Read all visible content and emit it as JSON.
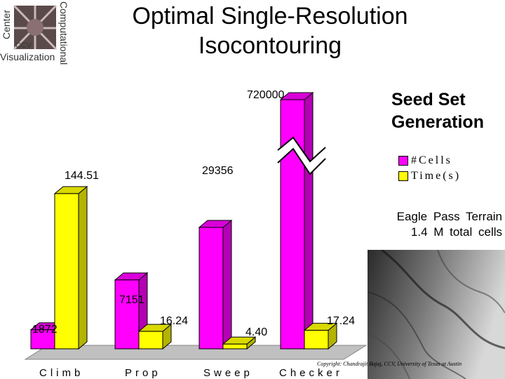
{
  "header": {
    "title_line1": "Optimal Single-Resolution",
    "title_line2": "Isocontouring",
    "logo": {
      "word_left": "Center",
      "word_right": "Computational",
      "word_bottom": "Visualization",
      "abbrev": "CCV"
    }
  },
  "panel": {
    "title_line1": "Seed Set",
    "title_line2": "Generation",
    "terrain_caption_line1": "Eagle   Pass   Terrain",
    "terrain_caption_line2": "1.4 M   total   cells",
    "copyright": "Copyright: Chandrajit Bajaj, CCV, University of Texas at Austin"
  },
  "chart_data": {
    "type": "bar",
    "style": "3d",
    "categories": [
      "Climb",
      "Prop",
      "Sweep",
      "Checker"
    ],
    "series": [
      {
        "name": "#Cells",
        "values": [
          1872,
          7151,
          29356,
          720000
        ],
        "labels": [
          "1872",
          "7151",
          "29356",
          "720000"
        ],
        "color": "#ff00ff"
      },
      {
        "name": "Time(s)",
        "values": [
          144.51,
          16.24,
          4.4,
          17.24
        ],
        "labels": [
          "144.51",
          "16.24",
          "4.40",
          "17.24"
        ],
        "color": "#ffff00"
      }
    ],
    "axis_break": "Checker #Cells bar is truncated with a break symbol",
    "legend_position": "right",
    "grid": false
  },
  "colors": {
    "floor": "#c0c0c0",
    "side_shade": "#b000b0",
    "yellow_side": "#b3b300"
  }
}
